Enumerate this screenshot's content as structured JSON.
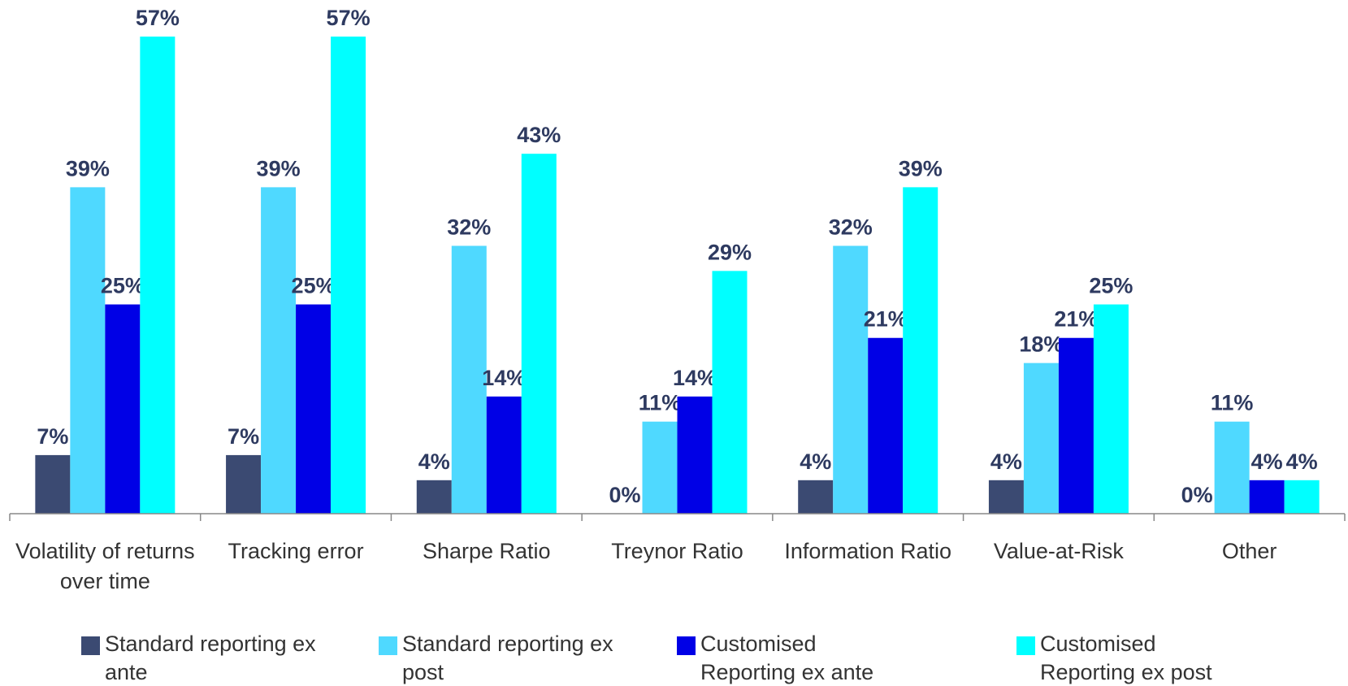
{
  "chart_data": {
    "type": "bar",
    "categories": [
      "Volatility of returns over time",
      "Tracking error",
      "Sharpe Ratio",
      "Treynor Ratio",
      "Information Ratio",
      "Value-at-Risk",
      "Other"
    ],
    "series": [
      {
        "name": "Standard reporting ex ante",
        "color": "#3b4a72",
        "values": [
          7,
          7,
          4,
          0,
          4,
          4,
          0
        ],
        "value_labels": [
          "7%",
          "7%",
          "4%",
          "0%",
          "4%",
          "4%",
          "0%"
        ]
      },
      {
        "name": "Standard reporting ex post",
        "color": "#4fd9ff",
        "values": [
          39,
          39,
          32,
          11,
          32,
          18,
          11
        ],
        "value_labels": [
          "39%",
          "39%",
          "32%",
          "11%",
          "32%",
          "18%",
          "11%"
        ]
      },
      {
        "name": "Customised Reporting ex ante",
        "color": "#0000e6",
        "values": [
          25,
          25,
          14,
          14,
          21,
          21,
          4
        ],
        "value_labels": [
          "25%",
          "25%",
          "14%",
          "14%",
          "21%",
          "21%",
          "4%"
        ]
      },
      {
        "name": "Customised Reporting ex post",
        "color": "#00ffff",
        "values": [
          57,
          57,
          43,
          29,
          39,
          25,
          4
        ],
        "value_labels": [
          "57%",
          "57%",
          "43%",
          "29%",
          "39%",
          "25%",
          "4%"
        ]
      }
    ],
    "legend": "bottom"
  }
}
